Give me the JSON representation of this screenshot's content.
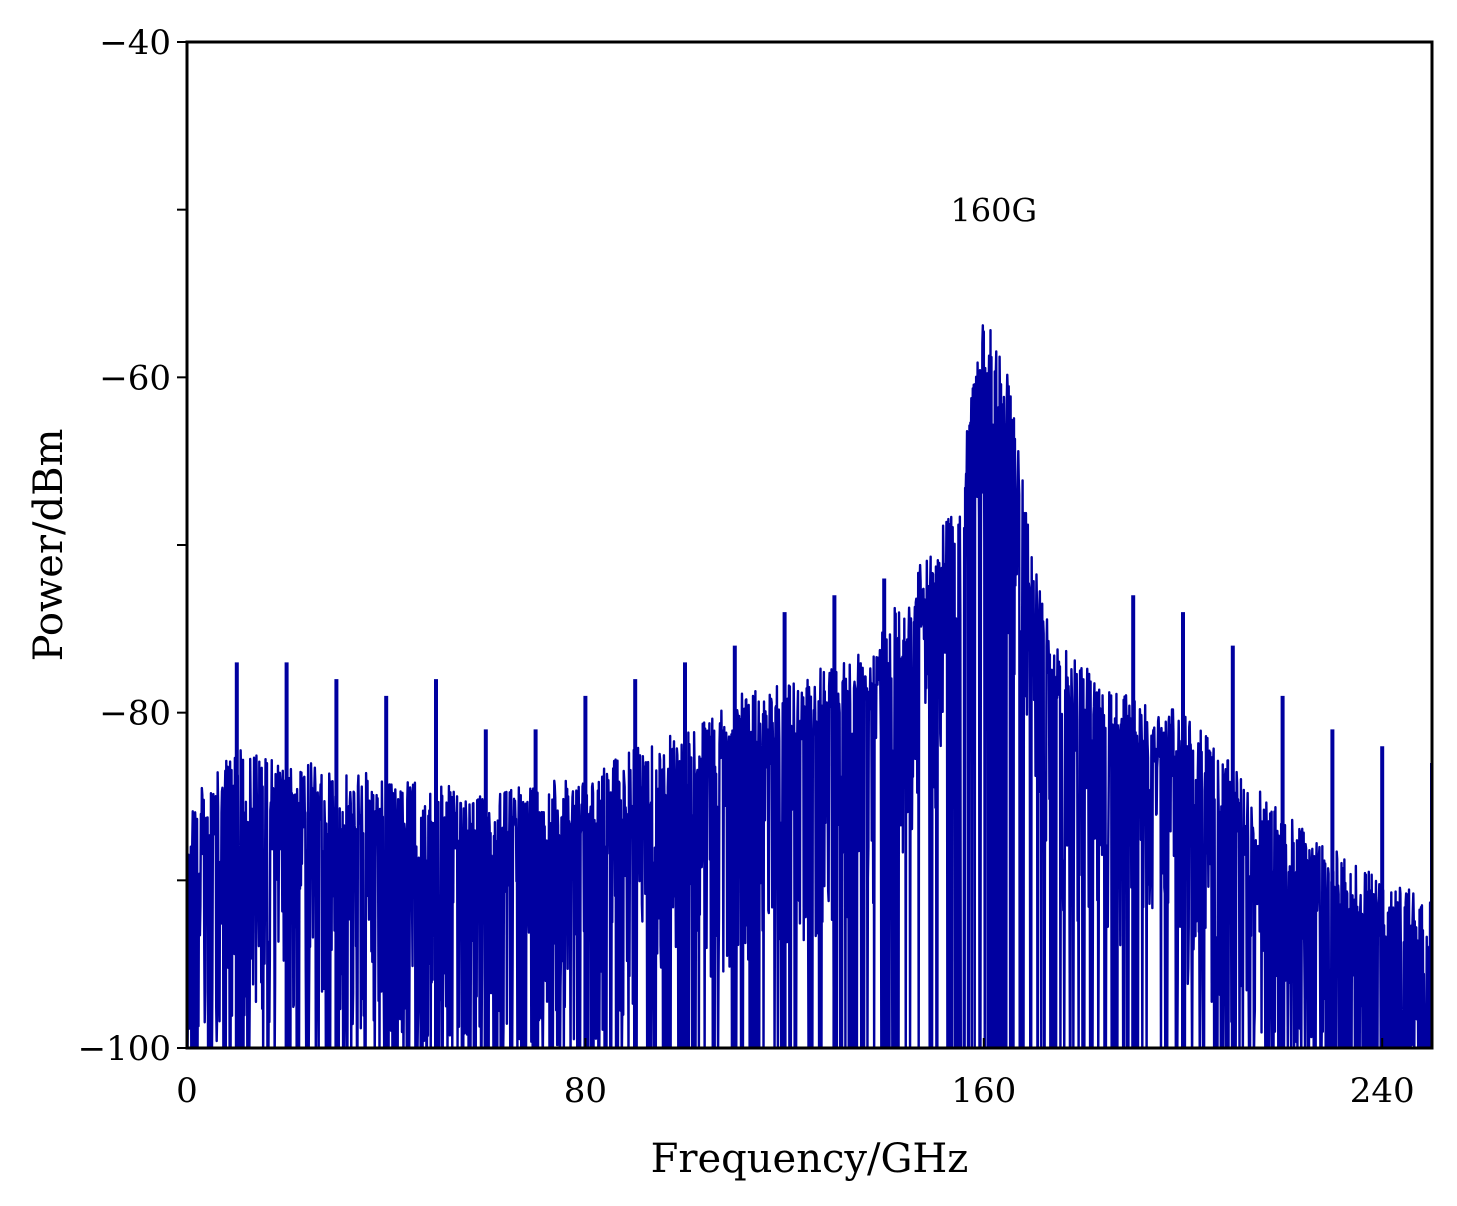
{
  "chart_data": {
    "type": "line",
    "title": "",
    "xlabel": "Frequency/GHz",
    "ylabel": "Power/dBm",
    "xlim": [
      0,
      250
    ],
    "ylim": [
      -100,
      -40
    ],
    "xticks": [
      0,
      80,
      160,
      240
    ],
    "yticks": [
      -100,
      -80,
      -60,
      -40
    ],
    "x_tick_labels": [
      "0",
      "80",
      "160",
      "240"
    ],
    "y_tick_labels": [
      "−100",
      "−80",
      "−60",
      "−40"
    ],
    "grid": false,
    "legend": "none",
    "annotations": [
      {
        "text": "160G",
        "x": 162,
        "y": -50
      }
    ],
    "series": [
      {
        "color": "#0000A0",
        "envelope": {
          "x": [
            0,
            5,
            10,
            20,
            30,
            40,
            50,
            60,
            70,
            80,
            90,
            100,
            110,
            120,
            130,
            140,
            145,
            150,
            155,
            158,
            160,
            162,
            165,
            170,
            175,
            180,
            190,
            200,
            210,
            220,
            230,
            240,
            250
          ],
          "y": [
            -85,
            -84,
            -82,
            -83,
            -83,
            -84,
            -84,
            -85,
            -84,
            -84,
            -82,
            -81,
            -79,
            -78,
            -77,
            -75,
            -72,
            -70,
            -66,
            -60,
            -56,
            -57,
            -60,
            -71,
            -76,
            -77,
            -79,
            -80,
            -83,
            -86,
            -88,
            -90,
            -91
          ]
        },
        "spikes": [
          {
            "x": 10,
            "y": -77
          },
          {
            "x": 20,
            "y": -77
          },
          {
            "x": 30,
            "y": -78
          },
          {
            "x": 40,
            "y": -79
          },
          {
            "x": 50,
            "y": -78
          },
          {
            "x": 60,
            "y": -81
          },
          {
            "x": 70,
            "y": -81
          },
          {
            "x": 80,
            "y": -79
          },
          {
            "x": 90,
            "y": -78
          },
          {
            "x": 100,
            "y": -77
          },
          {
            "x": 110,
            "y": -76
          },
          {
            "x": 120,
            "y": -74
          },
          {
            "x": 130,
            "y": -73
          },
          {
            "x": 140,
            "y": -72
          },
          {
            "x": 190,
            "y": -73
          },
          {
            "x": 200,
            "y": -74
          },
          {
            "x": 210,
            "y": -76
          },
          {
            "x": 220,
            "y": -79
          },
          {
            "x": 230,
            "y": -81
          },
          {
            "x": 240,
            "y": -82
          },
          {
            "x": 250,
            "y": -83
          }
        ]
      }
    ]
  }
}
